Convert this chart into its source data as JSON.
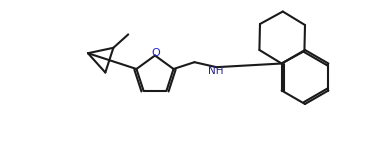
{
  "bg_color": "#ffffff",
  "line_color": "#000000",
  "line_width": 1.5,
  "figsize": [
    3.78,
    1.47
  ],
  "dpi": 100,
  "atoms": {
    "O_label": "O",
    "NH_label": "NH"
  },
  "bond_color": "#1a1a1a"
}
